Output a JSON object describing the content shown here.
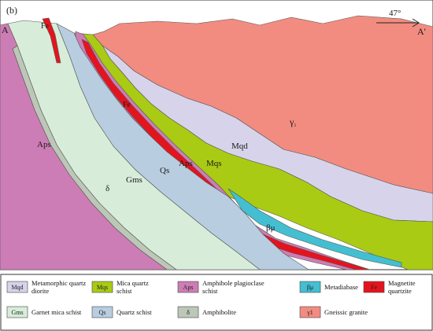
{
  "panel_label": "(b)",
  "section_start": "A",
  "section_end": "A'",
  "orientation": "47°",
  "colors": {
    "Mqd": "#d7d3ea",
    "Mqs": "#a9cb14",
    "Aps": "#cd7db5",
    "bmu": "#43bfd1",
    "Fe": "#e4141f",
    "Gms": "#d7edd9",
    "Qs": "#b8cde0",
    "delta": "#bdc7b8",
    "gamma": "#f28c80"
  },
  "map_labels": {
    "fe": "Fe",
    "fe2": "Fe",
    "aps_left": "Aps",
    "aps_mid": "Aps",
    "gms": "Gms",
    "qs": "Qs",
    "mqs": "Mqs",
    "mqd": "Mqd",
    "delta": "δ",
    "bmu": "βμ",
    "gamma": "γ",
    "gamma_sub": "1"
  },
  "legend": [
    {
      "code": "Mqd",
      "text": [
        "Metamorphic quartz",
        "diorite"
      ],
      "color": "#d7d3ea"
    },
    {
      "code": "Mqs",
      "text": [
        "Mica quartz",
        "schist"
      ],
      "color": "#a9cb14"
    },
    {
      "code": "Aps",
      "text": [
        "Amphibole plagioclase",
        "schist"
      ],
      "color": "#cd7db5"
    },
    {
      "code": "βμ",
      "text": [
        "Metadiabase"
      ],
      "color": "#43bfd1"
    },
    {
      "code": "Fe",
      "text": [
        "Magnetite",
        "quartzite"
      ],
      "color": "#e4141f"
    },
    {
      "code": "Gms",
      "text": [
        "Garnet mica schist"
      ],
      "color": "#d7edd9"
    },
    {
      "code": "Qs",
      "text": [
        "Quartz schist"
      ],
      "color": "#b8cde0"
    },
    {
      "code": "δ",
      "text": [
        "Amphibolite"
      ],
      "color": "#bdc7b8"
    },
    {
      "code": "γ1",
      "text": [
        "Gneissic granite"
      ],
      "color": "#f28c80"
    }
  ]
}
